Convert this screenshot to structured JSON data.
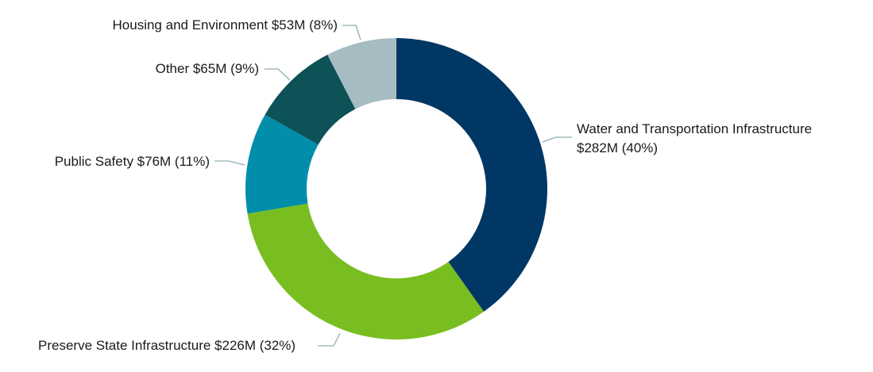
{
  "chart_data": {
    "type": "pie",
    "variant": "donut",
    "unit": "$M",
    "start_angle": "top, clockwise",
    "slices": [
      {
        "name": "Water and Transportation Infrastructure",
        "value": 282,
        "percent": 40,
        "color": "#003764",
        "label_line1": "Water and Transportation Infrastructure",
        "label_line2": "$282M (40%)"
      },
      {
        "name": "Preserve State Infrastructure",
        "value": 226,
        "percent": 32,
        "color": "#78be20",
        "label_line1": "Preserve State Infrastructure $226M (32%)"
      },
      {
        "name": "Public Safety",
        "value": 76,
        "percent": 11,
        "color": "#008eaa",
        "label_line1": "Public Safety $76M (11%)"
      },
      {
        "name": "Other",
        "value": 65,
        "percent": 9,
        "color": "#0d5257",
        "label_line1": "Other $65M (9%)"
      },
      {
        "name": "Housing and Environment",
        "value": 53,
        "percent": 8,
        "color": "#a6bbc2",
        "label_line1": "Housing and Environment $53M (8%)"
      }
    ],
    "leader_line_color": "#8fadb3"
  }
}
